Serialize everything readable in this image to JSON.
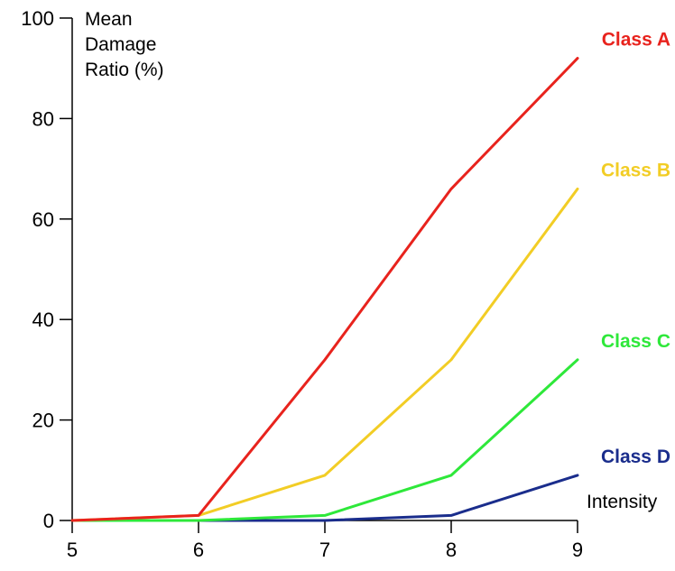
{
  "chart_data": {
    "type": "line",
    "title": "",
    "ylabel_lines": [
      "Mean",
      "Damage",
      "Ratio (%)"
    ],
    "xlabel": "Intensity",
    "x": [
      5,
      6,
      7,
      8,
      9
    ],
    "xlim": [
      5,
      9
    ],
    "ylim": [
      0,
      100
    ],
    "x_ticks": [
      "5",
      "6",
      "7",
      "8",
      "9"
    ],
    "y_ticks": [
      "0",
      "20",
      "40",
      "60",
      "80",
      "100"
    ],
    "grid": false,
    "series": [
      {
        "name": "Class A",
        "color": "#e8231d",
        "values": [
          0,
          1,
          32,
          66,
          92
        ]
      },
      {
        "name": "Class B",
        "color": "#f2cd25",
        "values": [
          0,
          1,
          9,
          32,
          66
        ]
      },
      {
        "name": "Class C",
        "color": "#2ee83a",
        "values": [
          0,
          0,
          1,
          9,
          32
        ]
      },
      {
        "name": "Class D",
        "color": "#1a2d8c",
        "values": [
          0,
          0,
          0,
          1,
          9
        ]
      }
    ]
  }
}
